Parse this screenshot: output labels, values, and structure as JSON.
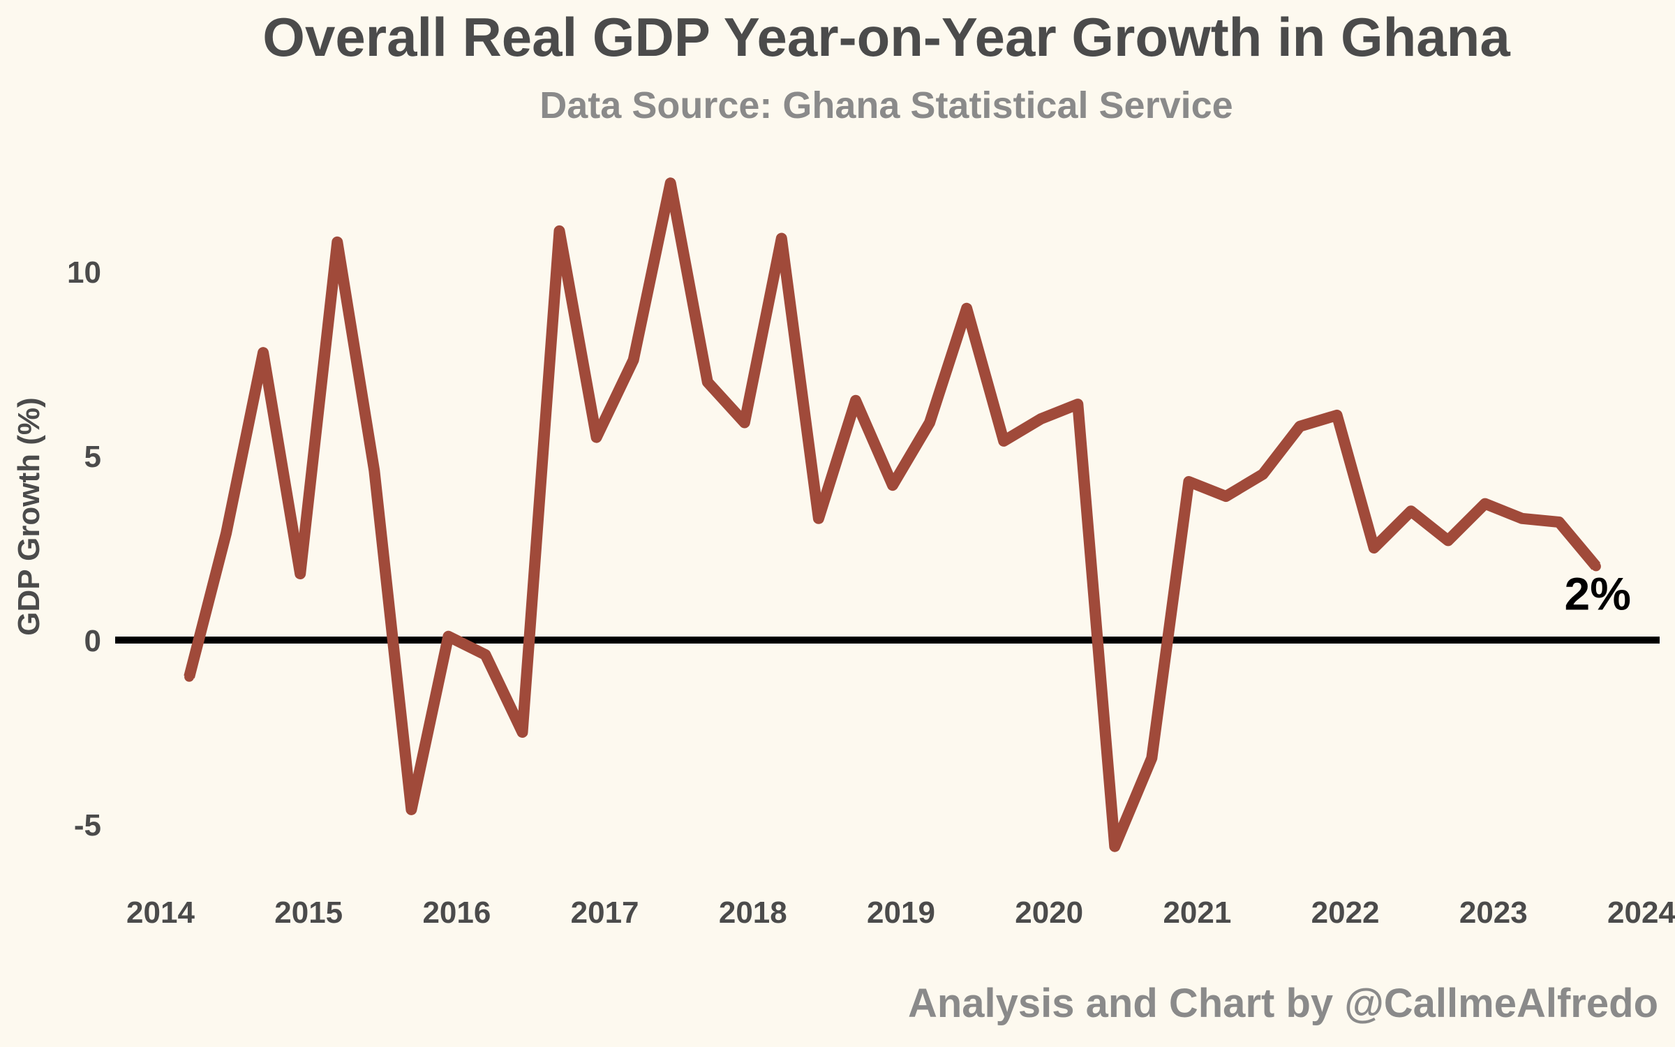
{
  "chart_data": {
    "type": "line",
    "title": "Overall Real GDP Year-on-Year Growth in Ghana",
    "subtitle": "Data Source: Ghana Statistical Service",
    "caption": "Analysis and Chart by @CallmeAlfredo",
    "ylabel": "GDP Growth (%)",
    "xlabel": "",
    "xlim": [
      2014,
      2024
    ],
    "ylim": [
      -6.5,
      13
    ],
    "x_ticks": [
      2014,
      2015,
      2016,
      2017,
      2018,
      2019,
      2020,
      2021,
      2022,
      2023,
      2024
    ],
    "y_ticks": [
      -5,
      0,
      5,
      10
    ],
    "y_tick_labels": [
      "-5",
      "0",
      "5",
      "10"
    ],
    "grid": false,
    "reference_line": 0,
    "end_label": "2%",
    "series": [
      {
        "x": [
          2014.25,
          2014.5,
          2014.75,
          2015.0,
          2015.25,
          2015.5,
          2015.75,
          2016.0,
          2016.25,
          2016.5,
          2016.75,
          2017.0,
          2017.25,
          2017.5,
          2017.75,
          2018.0,
          2018.25,
          2018.5,
          2018.75,
          2019.0,
          2019.25,
          2019.5,
          2019.75,
          2020.0,
          2020.25,
          2020.5,
          2020.75,
          2021.0,
          2021.25,
          2021.5,
          2021.75,
          2022.0,
          2022.25,
          2022.5,
          2022.75,
          2023.0,
          2023.25,
          2023.5,
          2023.75
        ],
        "y": [
          -1.0,
          2.9,
          7.8,
          1.8,
          10.8,
          4.6,
          -4.6,
          0.1,
          -0.4,
          -2.5,
          11.1,
          5.5,
          7.6,
          12.4,
          7.0,
          5.9,
          10.9,
          3.3,
          6.5,
          4.2,
          5.9,
          9.0,
          5.4,
          6.0,
          6.4,
          -5.6,
          -3.2,
          4.3,
          3.9,
          4.5,
          5.8,
          6.1,
          2.5,
          3.5,
          2.7,
          3.7,
          3.3,
          3.2,
          2.0
        ],
        "color": "#a04a3a"
      }
    ]
  }
}
